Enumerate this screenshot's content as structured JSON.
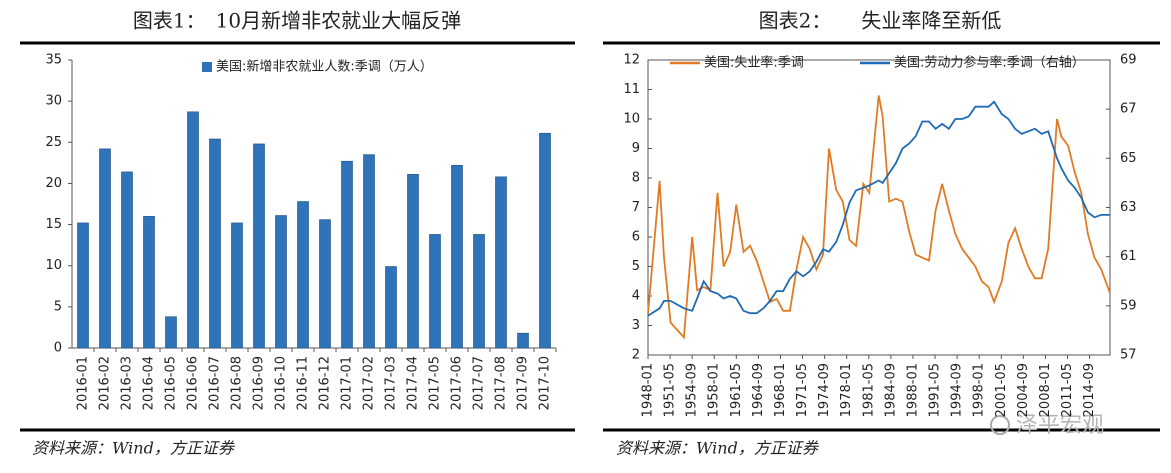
{
  "chart_data": [
    {
      "type": "bar",
      "title": "图表1：　10月新增非农就业大幅反弹",
      "source": "资料来源：Wind，方正证券",
      "categories": [
        "2016-01",
        "2016-02",
        "2016-03",
        "2016-04",
        "2016-05",
        "2016-06",
        "2016-07",
        "2016-08",
        "2016-09",
        "2016-10",
        "2016-11",
        "2016-12",
        "2017-01",
        "2017-02",
        "2017-03",
        "2017-04",
        "2017-05",
        "2017-06",
        "2017-07",
        "2017-08",
        "2017-09",
        "2017-10"
      ],
      "series": [
        {
          "name": "美国:新增非农就业人数:季调（万人）",
          "color": "#2f73b8",
          "values": [
            15.2,
            24.2,
            21.4,
            16.0,
            3.8,
            28.7,
            25.4,
            15.2,
            24.8,
            16.1,
            17.8,
            15.6,
            22.7,
            23.5,
            9.9,
            21.1,
            13.8,
            22.2,
            13.8,
            20.8,
            1.8,
            26.1
          ]
        }
      ],
      "ylim": [
        0,
        35
      ],
      "yticks": [
        0,
        5,
        10,
        15,
        20,
        25,
        30,
        35
      ],
      "grid": false
    },
    {
      "type": "line",
      "title": "图表2：　　失业率降至新低",
      "source": "资料来源：Wind，方正证券",
      "x": [
        "1948-01",
        "1949-10",
        "1950-06",
        "1951-06",
        "1953-06",
        "1954-09",
        "1955-06",
        "1956-06",
        "1957-06",
        "1958-07",
        "1959-06",
        "1960-06",
        "1961-05",
        "1962-06",
        "1963-06",
        "1964-06",
        "1965-06",
        "1966-06",
        "1967-06",
        "1968-06",
        "1969-06",
        "1970-06",
        "1971-06",
        "1972-06",
        "1973-06",
        "1974-06",
        "1975-05",
        "1976-06",
        "1977-06",
        "1978-06",
        "1979-06",
        "1980-07",
        "1981-06",
        "1982-11",
        "1983-06",
        "1984-06",
        "1985-06",
        "1986-06",
        "1987-06",
        "1988-06",
        "1989-06",
        "1990-06",
        "1991-06",
        "1992-06",
        "1993-06",
        "1994-06",
        "1995-06",
        "1996-06",
        "1997-06",
        "1998-06",
        "1999-06",
        "2000-04",
        "2001-06",
        "2002-06",
        "2003-06",
        "2004-06",
        "2005-06",
        "2006-06",
        "2007-06",
        "2008-06",
        "2009-10",
        "2010-06",
        "2011-06",
        "2012-06",
        "2013-06",
        "2014-06",
        "2015-06",
        "2016-06",
        "2017-10"
      ],
      "series": [
        {
          "name": "美国:失业率:季调",
          "color": "#e07b24",
          "values": [
            3.4,
            7.9,
            5.3,
            3.1,
            2.6,
            6.0,
            4.2,
            4.3,
            4.2,
            7.5,
            5.0,
            5.5,
            7.1,
            5.5,
            5.7,
            5.2,
            4.5,
            3.8,
            3.9,
            3.5,
            3.5,
            4.9,
            6.0,
            5.6,
            4.9,
            5.4,
            9.0,
            7.6,
            7.2,
            5.9,
            5.7,
            7.8,
            7.5,
            10.8,
            10.1,
            7.2,
            7.3,
            7.2,
            6.2,
            5.4,
            5.3,
            5.2,
            6.9,
            7.8,
            6.9,
            6.1,
            5.6,
            5.3,
            5.0,
            4.5,
            4.3,
            3.8,
            4.5,
            5.8,
            6.3,
            5.6,
            5.0,
            4.6,
            4.6,
            5.6,
            10.0,
            9.4,
            9.1,
            8.2,
            7.5,
            6.1,
            5.3,
            4.9,
            4.1
          ]
        },
        {
          "name": "美国:劳动力参与率:季调（右轴）",
          "color": "#1f6bb5",
          "axis": "y2",
          "values": [
            58.6,
            58.9,
            59.2,
            59.2,
            58.9,
            58.8,
            59.3,
            60.0,
            59.6,
            59.5,
            59.3,
            59.4,
            59.3,
            58.8,
            58.7,
            58.7,
            58.9,
            59.2,
            59.6,
            59.6,
            60.1,
            60.4,
            60.2,
            60.4,
            60.8,
            61.3,
            61.2,
            61.6,
            62.3,
            63.2,
            63.7,
            63.8,
            63.9,
            64.1,
            64.0,
            64.4,
            64.8,
            65.4,
            65.6,
            65.9,
            66.5,
            66.5,
            66.2,
            66.4,
            66.2,
            66.6,
            66.6,
            66.7,
            67.1,
            67.1,
            67.1,
            67.3,
            66.8,
            66.6,
            66.2,
            66.0,
            66.1,
            66.2,
            66.0,
            66.1,
            65.0,
            64.6,
            64.1,
            63.8,
            63.4,
            62.8,
            62.6,
            62.7,
            62.7
          ]
        }
      ],
      "xlim": [
        "1948-01",
        "2017-10"
      ],
      "xticks": [
        "1948-01",
        "1951-05",
        "1954-09",
        "1958-01",
        "1961-05",
        "1964-09",
        "1968-01",
        "1971-05",
        "1974-09",
        "1978-01",
        "1981-05",
        "1984-09",
        "1988-01",
        "1991-05",
        "1994-09",
        "1998-01",
        "2001-05",
        "2004-09",
        "2008-01",
        "2011-05",
        "2014-09"
      ],
      "ylim": [
        2,
        12
      ],
      "yticks": [
        2,
        3,
        4,
        5,
        6,
        7,
        8,
        9,
        10,
        11,
        12
      ],
      "y2lim": [
        57,
        69
      ],
      "y2ticks": [
        57,
        59,
        61,
        63,
        65,
        67,
        69
      ],
      "grid": false
    }
  ],
  "watermark": "泽平宏观"
}
